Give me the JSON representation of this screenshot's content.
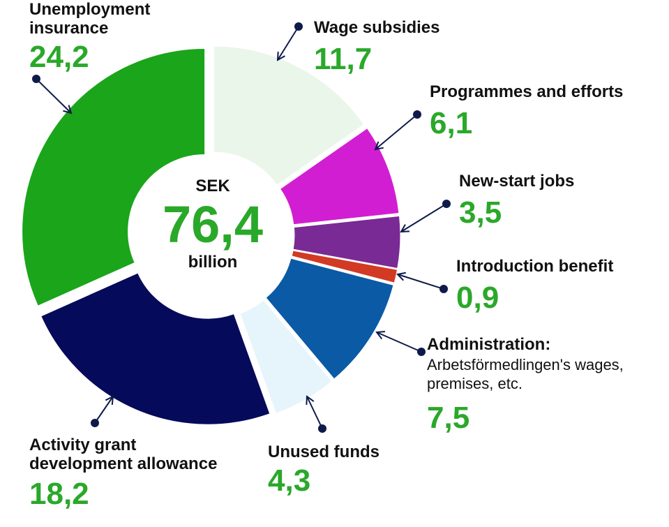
{
  "chart_data": {
    "type": "donut",
    "center": {
      "prefix": "SEK",
      "total": "76,4",
      "suffix": "billion"
    },
    "slices": [
      {
        "label": "Wage subsidies",
        "value": 11.7,
        "display": "11,7",
        "color": "#eaf6ea"
      },
      {
        "label": "Programmes and efforts",
        "value": 6.1,
        "display": "6,1",
        "color": "#d21ed2"
      },
      {
        "label": "New-start jobs",
        "value": 3.5,
        "display": "3,5",
        "color": "#7a2a94"
      },
      {
        "label": "Introduction benefit",
        "value": 0.9,
        "display": "0,9",
        "color": "#d23a24"
      },
      {
        "label": "Administration:",
        "sublabel_1": "Arbetsförmedlingen's wages,",
        "sublabel_2": "premises, etc.",
        "value": 7.5,
        "display": "7,5",
        "color": "#0a5aa6"
      },
      {
        "label": "Unused funds",
        "value": 4.3,
        "display": "4,3",
        "color": "#e6f4fc"
      },
      {
        "label_1": "Activity grant",
        "label_2": "development allowance",
        "value": 18.2,
        "display": "18,2",
        "color": "#050a5a"
      },
      {
        "label_1": "Unemployment",
        "label_2": "insurance",
        "value": 24.2,
        "display": "24,2",
        "color": "#1aa51a"
      }
    ],
    "colors": {
      "value_text": "#2aa82a",
      "arrow": "#0e1a4a"
    }
  }
}
